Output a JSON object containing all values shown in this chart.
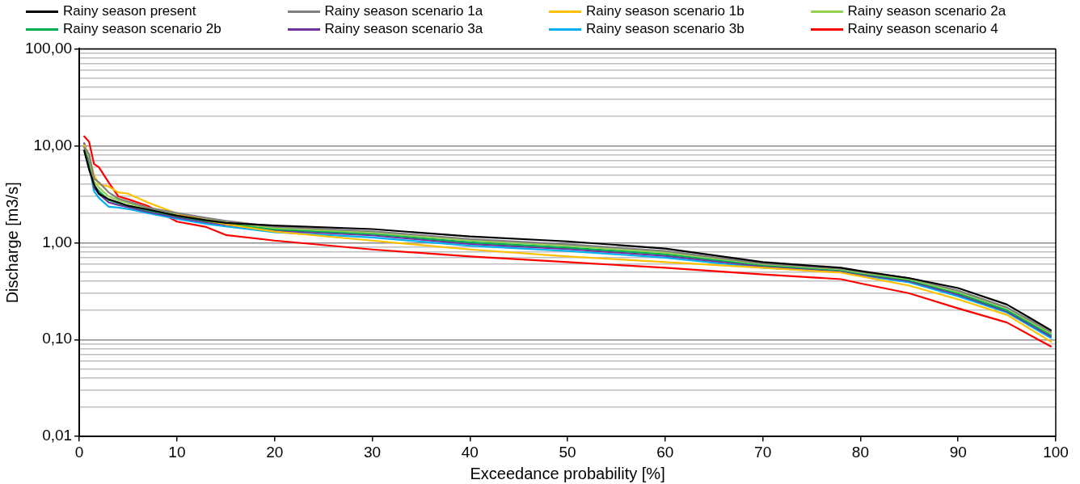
{
  "chart_data": {
    "type": "line",
    "xlabel": "Exceedance probability [%]",
    "ylabel": "Discharge [m3/s]",
    "log": "y",
    "grid": "y",
    "legend": "top",
    "marker": "none",
    "line_style": "solid",
    "x": [
      0.5,
      1,
      1.5,
      2,
      3,
      4,
      5,
      7,
      10,
      13,
      15,
      20,
      30,
      40,
      50,
      60,
      70,
      78,
      80,
      85,
      90,
      95,
      99.5
    ],
    "xlim": [
      0,
      100
    ],
    "xticks": [
      0,
      10,
      20,
      30,
      40,
      50,
      60,
      70,
      80,
      90,
      100
    ],
    "ylim": [
      0.01,
      100
    ],
    "yticks": [
      {
        "value": 0.01,
        "label": "0,01"
      },
      {
        "value": 0.02,
        "label": null
      },
      {
        "value": 0.03,
        "label": null
      },
      {
        "value": 0.04,
        "label": null
      },
      {
        "value": 0.05,
        "label": null
      },
      {
        "value": 0.06,
        "label": null
      },
      {
        "value": 0.07,
        "label": null
      },
      {
        "value": 0.08,
        "label": null
      },
      {
        "value": 0.09,
        "label": null
      },
      {
        "value": 0.1,
        "label": "0,10"
      },
      {
        "value": 0.2,
        "label": null
      },
      {
        "value": 0.3,
        "label": null
      },
      {
        "value": 0.4,
        "label": null
      },
      {
        "value": 0.5,
        "label": null
      },
      {
        "value": 0.6,
        "label": null
      },
      {
        "value": 0.7,
        "label": null
      },
      {
        "value": 0.8,
        "label": null
      },
      {
        "value": 0.9,
        "label": null
      },
      {
        "value": 1,
        "label": "1,00"
      },
      {
        "value": 2,
        "label": null
      },
      {
        "value": 3,
        "label": null
      },
      {
        "value": 4,
        "label": null
      },
      {
        "value": 5,
        "label": null
      },
      {
        "value": 6,
        "label": null
      },
      {
        "value": 7,
        "label": null
      },
      {
        "value": 8,
        "label": null
      },
      {
        "value": 9,
        "label": null
      },
      {
        "value": 10,
        "label": "10,00"
      },
      {
        "value": 20,
        "label": null
      },
      {
        "value": 30,
        "label": null
      },
      {
        "value": 40,
        "label": null
      },
      {
        "value": 50,
        "label": null
      },
      {
        "value": 60,
        "label": null
      },
      {
        "value": 70,
        "label": null
      },
      {
        "value": 80,
        "label": null
      },
      {
        "value": 90,
        "label": null
      },
      {
        "value": 100,
        "label": "100,00"
      }
    ],
    "series": [
      {
        "name": "Rainy season present",
        "color": "#000000",
        "values": [
          8.9,
          5.7,
          4,
          3.2,
          2.8,
          2.6,
          2.4,
          2.2,
          1.9,
          1.7,
          1.6,
          1.5,
          1.38,
          1.16,
          1.03,
          0.87,
          0.63,
          0.55,
          0.51,
          0.43,
          0.34,
          0.23,
          0.125
        ]
      },
      {
        "name": "Rainy season scenario 1a",
        "color": "#808080",
        "values": [
          9.6,
          8.2,
          4.6,
          4.2,
          3.3,
          2.85,
          2.65,
          2.3,
          2.02,
          1.8,
          1.68,
          1.46,
          1.31,
          1.09,
          0.96,
          0.82,
          0.61,
          0.54,
          0.5,
          0.43,
          0.32,
          0.215,
          0.12
        ]
      },
      {
        "name": "Rainy season scenario 1b",
        "color": "#ffc000",
        "values": [
          10,
          8,
          5,
          4,
          3.8,
          3.3,
          3.2,
          2.6,
          2,
          1.7,
          1.55,
          1.3,
          1.05,
          0.85,
          0.72,
          0.63,
          0.55,
          0.49,
          0.45,
          0.36,
          0.26,
          0.18,
          0.095
        ]
      },
      {
        "name": "Rainy season scenario 2a",
        "color": "#92d050",
        "values": [
          10.2,
          7.6,
          4.3,
          3.7,
          3,
          2.75,
          2.55,
          2.25,
          1.95,
          1.74,
          1.63,
          1.42,
          1.27,
          1.05,
          0.93,
          0.79,
          0.6,
          0.53,
          0.49,
          0.42,
          0.31,
          0.21,
          0.116
        ]
      },
      {
        "name": "Rainy season scenario 2b",
        "color": "#00b050",
        "values": [
          9.8,
          7.2,
          3.9,
          3.4,
          2.75,
          2.55,
          2.4,
          2.15,
          1.88,
          1.67,
          1.57,
          1.37,
          1.23,
          1.01,
          0.89,
          0.76,
          0.585,
          0.52,
          0.48,
          0.41,
          0.3,
          0.2,
          0.112
        ]
      },
      {
        "name": "Rainy season scenario 3a",
        "color": "#7030a0",
        "values": [
          10.6,
          6.8,
          3.7,
          3.2,
          2.6,
          2.45,
          2.32,
          2.08,
          1.82,
          1.62,
          1.53,
          1.33,
          1.19,
          0.97,
          0.86,
          0.73,
          0.57,
          0.51,
          0.47,
          0.4,
          0.29,
          0.195,
          0.108
        ]
      },
      {
        "name": "Rainy season scenario 3b",
        "color": "#00b0f0",
        "values": [
          10,
          6.4,
          3.4,
          2.9,
          2.35,
          2.3,
          2.22,
          2.02,
          1.76,
          1.56,
          1.47,
          1.28,
          1.13,
          0.93,
          0.82,
          0.7,
          0.55,
          0.5,
          0.46,
          0.39,
          0.28,
          0.19,
          0.104
        ]
      },
      {
        "name": "Rainy season scenario 4",
        "color": "#ff0000",
        "values": [
          12.5,
          11,
          6.5,
          6,
          4.2,
          3,
          2.8,
          2.4,
          1.65,
          1.45,
          1.2,
          1.05,
          0.85,
          0.72,
          0.63,
          0.55,
          0.47,
          0.42,
          0.38,
          0.3,
          0.21,
          0.15,
          0.085
        ]
      }
    ]
  }
}
